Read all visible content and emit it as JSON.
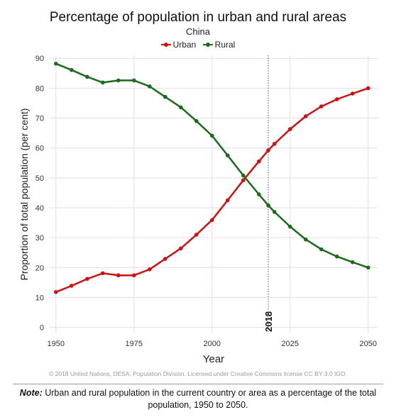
{
  "colors": {
    "urban": "#cc1111",
    "rural": "#1b6b1b",
    "grid": "#ead9ea",
    "marker_line": "#555555"
  },
  "chart_data": {
    "type": "line",
    "title": "Percentage of population in urban and rural areas",
    "subtitle": "China",
    "xlabel": "Year",
    "ylabel": "Proportion of total population (per cent)",
    "xlim": [
      1948,
      2053
    ],
    "ylim": [
      -2,
      91
    ],
    "x_ticks": [
      1950,
      1975,
      2000,
      2025,
      2050
    ],
    "y_ticks": [
      0,
      10,
      20,
      30,
      40,
      50,
      60,
      70,
      80,
      90
    ],
    "grid": true,
    "legend_position": "top-center",
    "vertical_marker": {
      "x": 2018,
      "label": "2018"
    },
    "x": [
      1950,
      1955,
      1960,
      1965,
      1970,
      1975,
      1980,
      1985,
      1990,
      1995,
      2000,
      2005,
      2010,
      2015,
      2018,
      2020,
      2025,
      2030,
      2035,
      2040,
      2045,
      2050
    ],
    "series": [
      {
        "name": "Urban",
        "values": [
          11.8,
          13.9,
          16.2,
          18.1,
          17.4,
          17.4,
          19.4,
          22.9,
          26.4,
          31.0,
          35.9,
          42.5,
          49.2,
          55.5,
          59.2,
          61.4,
          66.3,
          70.6,
          73.9,
          76.3,
          78.2,
          80.0
        ]
      },
      {
        "name": "Rural",
        "values": [
          88.2,
          86.1,
          83.8,
          81.9,
          82.6,
          82.6,
          80.6,
          77.1,
          73.6,
          69.0,
          64.1,
          57.5,
          50.8,
          44.5,
          40.8,
          38.6,
          33.7,
          29.4,
          26.1,
          23.7,
          21.8,
          20.0
        ]
      }
    ]
  },
  "credit": "© 2018 United Nations, DESA, Population Division. Licensed under Creative Commons license CC BY 3.0 IGO.",
  "note": {
    "label": "Note:",
    "text": "Urban and rural population in the current country or area as a percentage of the total population, 1950 to 2050."
  }
}
